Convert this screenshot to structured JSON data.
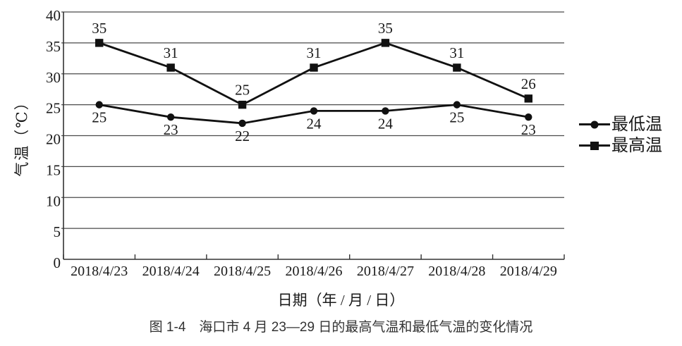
{
  "chart_data": {
    "type": "line",
    "categories": [
      "2018/4/23",
      "2018/4/24",
      "2018/4/25",
      "2018/4/26",
      "2018/4/27",
      "2018/4/28",
      "2018/4/29"
    ],
    "series": [
      {
        "name": "最低温",
        "marker": "circle",
        "label_position": "below",
        "values": [
          25,
          23,
          22,
          24,
          24,
          25,
          23
        ]
      },
      {
        "name": "最高温",
        "marker": "square",
        "label_position": "above",
        "values": [
          35,
          31,
          25,
          31,
          35,
          31,
          26
        ]
      }
    ],
    "title": "",
    "xlabel": "日期（年 / 月 / 日）",
    "ylabel": "气温（℃）",
    "ylim": [
      0,
      40
    ],
    "ytick_step": 5,
    "grid": "horizontal",
    "legend_position": "right",
    "point_labels_shown": true
  },
  "caption": "图 1-4　海口市 4 月 23—29 日的最高气温和最低气温的变化情况",
  "colors": {
    "series": "#111111",
    "grid": "#4a4a4a",
    "axis": "#333333",
    "text": "#1a1a1a",
    "caption_text": "#333333",
    "background": "#ffffff"
  }
}
